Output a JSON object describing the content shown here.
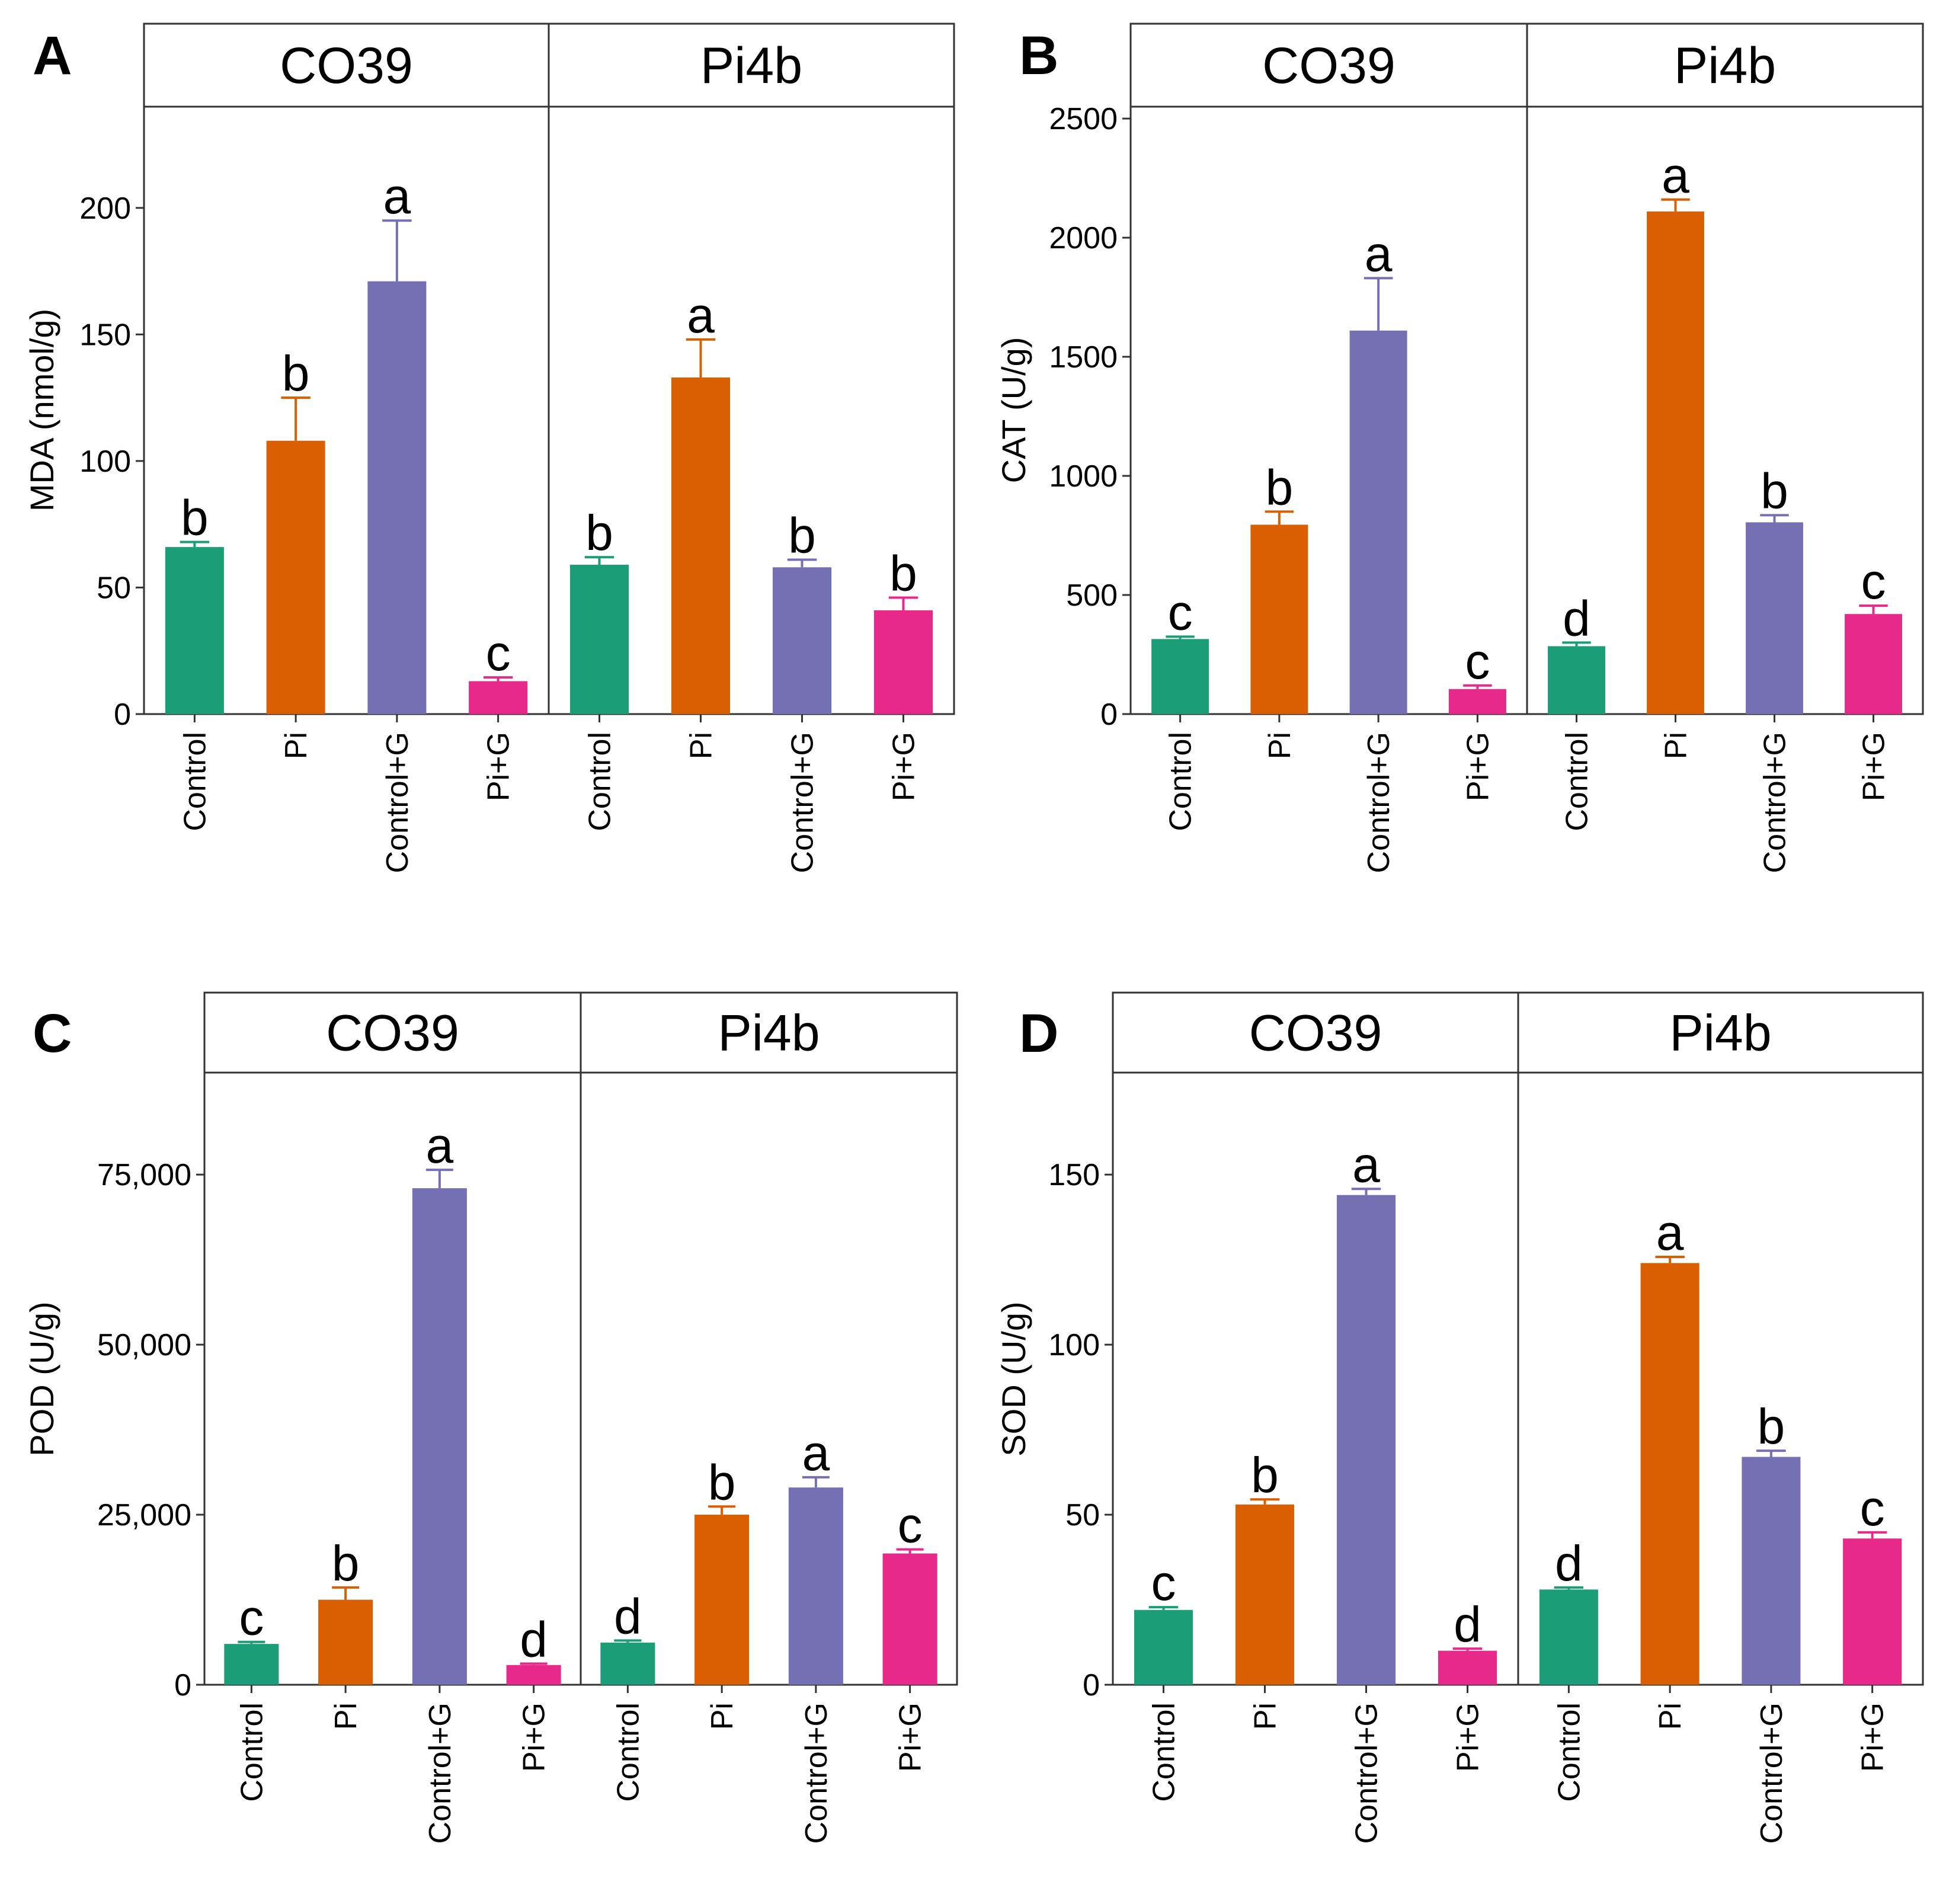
{
  "colors": {
    "Control": "#1b9e77",
    "Pi": "#d95f02",
    "Control+G": "#7570b3",
    "Pi+G": "#e7298a"
  },
  "chart_data": [
    {
      "panel": "A",
      "type": "bar",
      "ylabel": "MDA (nmol/g)",
      "ylim": [
        0,
        240
      ],
      "yticks": [
        0,
        50,
        100,
        150,
        200
      ],
      "ytick_labels": [
        "0",
        "50",
        "100",
        "150",
        "200"
      ],
      "facets": [
        {
          "title": "CO39",
          "categories": [
            "Control",
            "Pi",
            "Control+G",
            "Pi+G"
          ],
          "values": [
            66,
            108,
            171,
            13
          ],
          "errors": [
            2,
            17,
            24,
            1.5
          ],
          "letters": [
            "b",
            "b",
            "a",
            "c"
          ]
        },
        {
          "title": "Pi4b",
          "categories": [
            "Control",
            "Pi",
            "Control+G",
            "Pi+G"
          ],
          "values": [
            59,
            133,
            58,
            41
          ],
          "errors": [
            3,
            15,
            3,
            5
          ],
          "letters": [
            "b",
            "a",
            "b",
            "b"
          ]
        }
      ]
    },
    {
      "panel": "B",
      "type": "bar",
      "ylabel": "CAT (U/g)",
      "ylim": [
        0,
        2550
      ],
      "yticks": [
        0,
        500,
        1000,
        1500,
        2000,
        2500
      ],
      "ytick_labels": [
        "0",
        "500",
        "1000",
        "1500",
        "2000",
        "2500"
      ],
      "facets": [
        {
          "title": "CO39",
          "categories": [
            "Control",
            "Pi",
            "Control+G",
            "Pi+G"
          ],
          "values": [
            315,
            795,
            1610,
            105
          ],
          "errors": [
            10,
            55,
            220,
            15
          ],
          "letters": [
            "c",
            "b",
            "a",
            "c"
          ]
        },
        {
          "title": "Pi4b",
          "categories": [
            "Control",
            "Pi",
            "Control+G",
            "Pi+G"
          ],
          "values": [
            285,
            2110,
            805,
            420
          ],
          "errors": [
            15,
            50,
            30,
            35
          ],
          "letters": [
            "d",
            "a",
            "b",
            "c"
          ]
        }
      ]
    },
    {
      "panel": "C",
      "type": "bar",
      "ylabel": "POD (U/g)",
      "ylim": [
        0,
        90000
      ],
      "yticks": [
        0,
        25000,
        50000,
        75000
      ],
      "ytick_labels": [
        "0",
        "25,000",
        "50,000",
        "75,000"
      ],
      "facets": [
        {
          "title": "CO39",
          "categories": [
            "Control",
            "Pi",
            "Control+G",
            "Pi+G"
          ],
          "values": [
            6000,
            12500,
            73000,
            2900
          ],
          "errors": [
            300,
            1800,
            2700,
            200
          ],
          "letters": [
            "c",
            "b",
            "a",
            "d"
          ]
        },
        {
          "title": "Pi4b",
          "categories": [
            "Control",
            "Pi",
            "Control+G",
            "Pi+G"
          ],
          "values": [
            6200,
            25000,
            29000,
            19300
          ],
          "errors": [
            300,
            1200,
            1500,
            600
          ],
          "letters": [
            "d",
            "b",
            "a",
            "c"
          ]
        }
      ]
    },
    {
      "panel": "D",
      "type": "bar",
      "ylabel": "SOD (U/g)",
      "ylim": [
        0,
        180
      ],
      "yticks": [
        0,
        50,
        100,
        150
      ],
      "ytick_labels": [
        "0",
        "50",
        "100",
        "150"
      ],
      "facets": [
        {
          "title": "CO39",
          "categories": [
            "Control",
            "Pi",
            "Control+G",
            "Pi+G"
          ],
          "values": [
            22,
            53,
            144,
            10
          ],
          "errors": [
            0.8,
            1.5,
            1.8,
            0.6
          ],
          "letters": [
            "c",
            "b",
            "a",
            "d"
          ]
        },
        {
          "title": "Pi4b",
          "categories": [
            "Control",
            "Pi",
            "Control+G",
            "Pi+G"
          ],
          "values": [
            28,
            124,
            67,
            43
          ],
          "errors": [
            0.6,
            1.8,
            1.8,
            1.8
          ],
          "letters": [
            "d",
            "a",
            "b",
            "c"
          ]
        }
      ]
    }
  ]
}
